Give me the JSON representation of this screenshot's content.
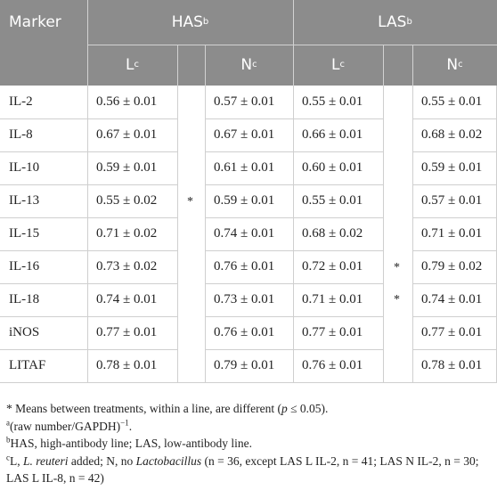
{
  "header": {
    "marker": "Marker",
    "has": "HAS",
    "has_sup": "b",
    "las": "LAS",
    "las_sup": "b",
    "l": "L",
    "l_sup": "c",
    "n": "N",
    "n_sup": "c"
  },
  "rows": [
    {
      "marker": "IL-2",
      "has_l": "0.56 ± 0.01",
      "has_n": "0.57 ± 0.01",
      "las_l": "0.55 ± 0.01",
      "las_n": "0.55 ± 0.01"
    },
    {
      "marker": "IL-8",
      "has_l": "0.67 ± 0.01",
      "has_n": "0.67 ± 0.01",
      "las_l": "0.66 ± 0.01",
      "las_n": "0.68 ± 0.02"
    },
    {
      "marker": "IL-10",
      "has_l": "0.59 ± 0.01",
      "has_n": "0.61 ± 0.01",
      "las_l": "0.60 ± 0.01",
      "las_n": "0.59 ± 0.01"
    },
    {
      "marker": "IL-13",
      "has_l": "0.55 ± 0.02",
      "has_n": "0.59 ± 0.01",
      "las_l": "0.55 ± 0.01",
      "las_n": "0.57 ± 0.01"
    },
    {
      "marker": "IL-15",
      "has_l": "0.71 ± 0.02",
      "has_n": "0.74 ± 0.01",
      "las_l": "0.68 ± 0.02",
      "las_n": "0.71 ± 0.01"
    },
    {
      "marker": "IL-16",
      "has_l": "0.73 ± 0.02",
      "has_n": "0.76 ± 0.01",
      "las_l": "0.72 ± 0.01",
      "las_n": "0.79 ± 0.02"
    },
    {
      "marker": "IL-18",
      "has_l": "0.74 ± 0.01",
      "has_n": "0.73 ± 0.01",
      "las_l": "0.71 ± 0.01",
      "las_n": "0.74 ± 0.01"
    },
    {
      "marker": "iNOS",
      "has_l": "0.77 ± 0.01",
      "has_n": "0.76 ± 0.01",
      "las_l": "0.77 ± 0.01",
      "las_n": "0.77 ± 0.01"
    },
    {
      "marker": "LITAF",
      "has_l": "0.78 ± 0.01",
      "has_n": "0.79 ± 0.01",
      "las_l": "0.76 ± 0.01",
      "las_n": "0.78 ± 0.01"
    }
  ],
  "significance": {
    "has_star": "*",
    "las_star_1": "*",
    "las_star_2": "*"
  },
  "footnotes": {
    "star_note": "* Means between treatments, within a line, are different (",
    "star_p": "p",
    "star_tail": " ≤ 0.05).",
    "a_sup": "a",
    "a_text": "(raw number/GAPDH)",
    "a_exp": "−1",
    "a_end": ".",
    "b_sup": "b",
    "b_text": "HAS, high-antibody line; LAS, low-antibody line.",
    "c_sup": "c",
    "c_text_1": "L, ",
    "c_italic_1": "L. reuteri",
    "c_text_2": " added; N, no ",
    "c_italic_2": "Lactobacillus",
    "c_text_3": " (n = 36, except LAS L IL-2, n = 41; LAS N IL-2, n = 30; LAS L IL-8, n = 42)"
  }
}
